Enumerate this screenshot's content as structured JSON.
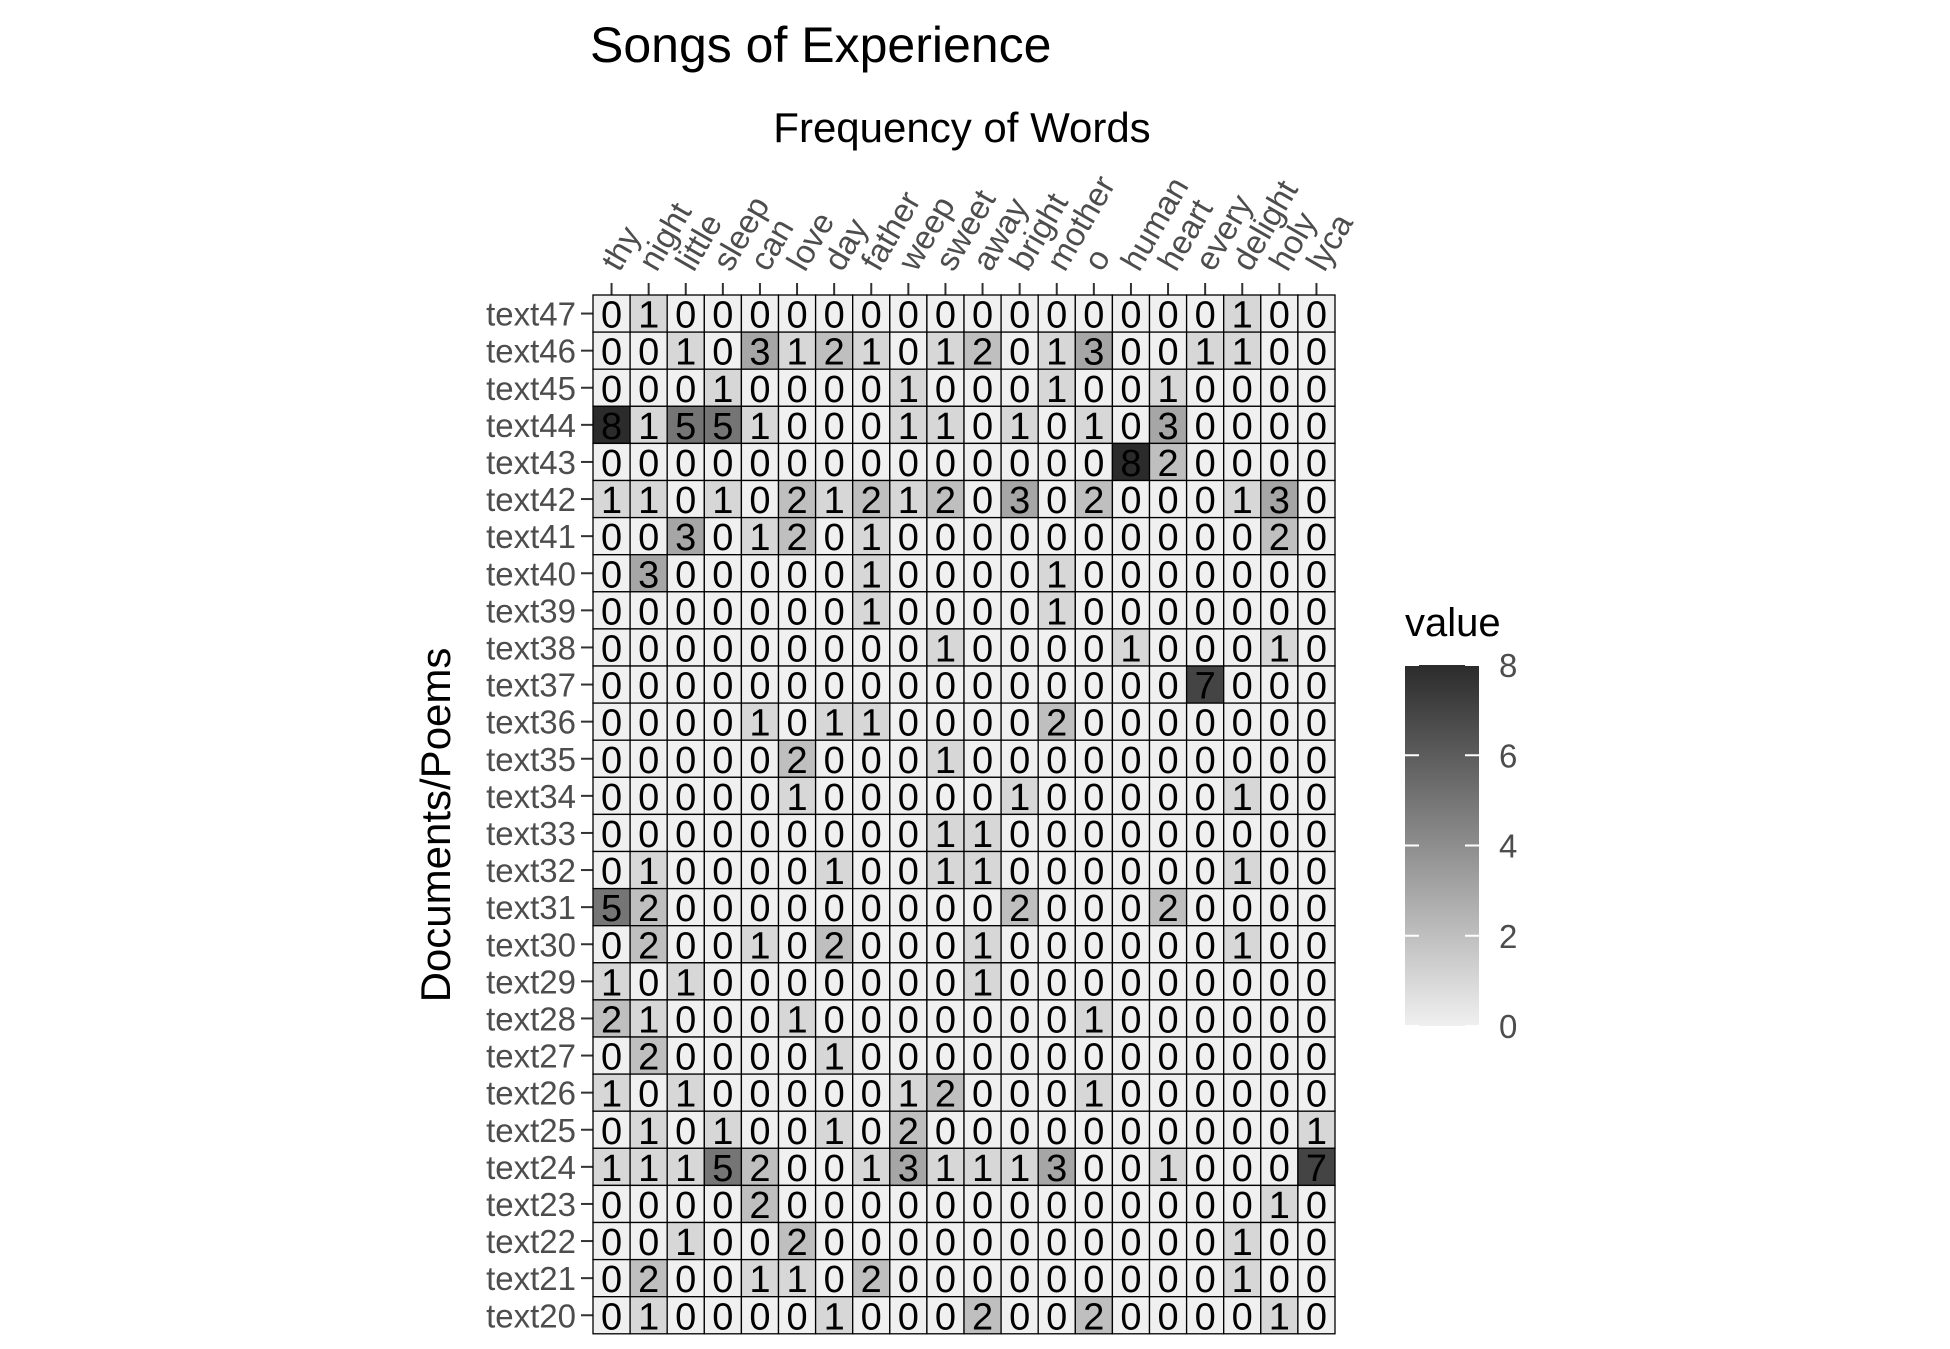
{
  "chart_data": {
    "type": "heatmap",
    "title": "Songs of Experience",
    "subtitle": "Frequency of Words",
    "xlabel": "",
    "ylabel": "Documents/Poems",
    "x_axis_position": "top",
    "x_categories": [
      "thy",
      "night",
      "little",
      "sleep",
      "can",
      "love",
      "day",
      "father",
      "weep",
      "sweet",
      "away",
      "bright",
      "mother",
      "o",
      "human",
      "heart",
      "every",
      "delight",
      "holy",
      "lyca"
    ],
    "y_categories": [
      "text47",
      "text46",
      "text45",
      "text44",
      "text43",
      "text42",
      "text41",
      "text40",
      "text39",
      "text38",
      "text37",
      "text36",
      "text35",
      "text34",
      "text33",
      "text32",
      "text31",
      "text30",
      "text29",
      "text28",
      "text27",
      "text26",
      "text25",
      "text24",
      "text23",
      "text22",
      "text21",
      "text20"
    ],
    "values": [
      [
        0,
        1,
        0,
        0,
        0,
        0,
        0,
        0,
        0,
        0,
        0,
        0,
        0,
        0,
        0,
        0,
        0,
        1,
        0,
        0
      ],
      [
        0,
        0,
        1,
        0,
        3,
        1,
        2,
        1,
        0,
        1,
        2,
        0,
        1,
        3,
        0,
        0,
        1,
        1,
        0,
        0
      ],
      [
        0,
        0,
        0,
        1,
        0,
        0,
        0,
        0,
        1,
        0,
        0,
        0,
        1,
        0,
        0,
        1,
        0,
        0,
        0,
        0
      ],
      [
        8,
        1,
        5,
        5,
        1,
        0,
        0,
        0,
        1,
        1,
        0,
        1,
        0,
        1,
        0,
        3,
        0,
        0,
        0,
        0
      ],
      [
        0,
        0,
        0,
        0,
        0,
        0,
        0,
        0,
        0,
        0,
        0,
        0,
        0,
        0,
        8,
        2,
        0,
        0,
        0,
        0
      ],
      [
        1,
        1,
        0,
        1,
        0,
        2,
        1,
        2,
        1,
        2,
        0,
        3,
        0,
        2,
        0,
        0,
        0,
        1,
        3,
        0
      ],
      [
        0,
        0,
        3,
        0,
        1,
        2,
        0,
        1,
        0,
        0,
        0,
        0,
        0,
        0,
        0,
        0,
        0,
        0,
        2,
        0
      ],
      [
        0,
        3,
        0,
        0,
        0,
        0,
        0,
        1,
        0,
        0,
        0,
        0,
        1,
        0,
        0,
        0,
        0,
        0,
        0,
        0
      ],
      [
        0,
        0,
        0,
        0,
        0,
        0,
        0,
        1,
        0,
        0,
        0,
        0,
        1,
        0,
        0,
        0,
        0,
        0,
        0,
        0
      ],
      [
        0,
        0,
        0,
        0,
        0,
        0,
        0,
        0,
        0,
        1,
        0,
        0,
        0,
        0,
        1,
        0,
        0,
        0,
        1,
        0
      ],
      [
        0,
        0,
        0,
        0,
        0,
        0,
        0,
        0,
        0,
        0,
        0,
        0,
        0,
        0,
        0,
        0,
        7,
        0,
        0,
        0
      ],
      [
        0,
        0,
        0,
        0,
        1,
        0,
        1,
        1,
        0,
        0,
        0,
        0,
        2,
        0,
        0,
        0,
        0,
        0,
        0,
        0
      ],
      [
        0,
        0,
        0,
        0,
        0,
        2,
        0,
        0,
        0,
        1,
        0,
        0,
        0,
        0,
        0,
        0,
        0,
        0,
        0,
        0
      ],
      [
        0,
        0,
        0,
        0,
        0,
        1,
        0,
        0,
        0,
        0,
        0,
        1,
        0,
        0,
        0,
        0,
        0,
        1,
        0,
        0
      ],
      [
        0,
        0,
        0,
        0,
        0,
        0,
        0,
        0,
        0,
        1,
        1,
        0,
        0,
        0,
        0,
        0,
        0,
        0,
        0,
        0
      ],
      [
        0,
        1,
        0,
        0,
        0,
        0,
        1,
        0,
        0,
        1,
        1,
        0,
        0,
        0,
        0,
        0,
        0,
        1,
        0,
        0
      ],
      [
        5,
        2,
        0,
        0,
        0,
        0,
        0,
        0,
        0,
        0,
        0,
        2,
        0,
        0,
        0,
        2,
        0,
        0,
        0,
        0
      ],
      [
        0,
        2,
        0,
        0,
        1,
        0,
        2,
        0,
        0,
        0,
        1,
        0,
        0,
        0,
        0,
        0,
        0,
        1,
        0,
        0
      ],
      [
        1,
        0,
        1,
        0,
        0,
        0,
        0,
        0,
        0,
        0,
        1,
        0,
        0,
        0,
        0,
        0,
        0,
        0,
        0,
        0
      ],
      [
        2,
        1,
        0,
        0,
        0,
        1,
        0,
        0,
        0,
        0,
        0,
        0,
        0,
        1,
        0,
        0,
        0,
        0,
        0,
        0
      ],
      [
        0,
        2,
        0,
        0,
        0,
        0,
        1,
        0,
        0,
        0,
        0,
        0,
        0,
        0,
        0,
        0,
        0,
        0,
        0,
        0
      ],
      [
        1,
        0,
        1,
        0,
        0,
        0,
        0,
        0,
        1,
        2,
        0,
        0,
        0,
        1,
        0,
        0,
        0,
        0,
        0,
        0
      ],
      [
        0,
        1,
        0,
        1,
        0,
        0,
        1,
        0,
        2,
        0,
        0,
        0,
        0,
        0,
        0,
        0,
        0,
        0,
        0,
        1
      ],
      [
        1,
        1,
        1,
        5,
        2,
        0,
        0,
        1,
        3,
        1,
        1,
        1,
        3,
        0,
        0,
        1,
        0,
        0,
        0,
        7
      ],
      [
        0,
        0,
        0,
        0,
        2,
        0,
        0,
        0,
        0,
        0,
        0,
        0,
        0,
        0,
        0,
        0,
        0,
        0,
        1,
        0
      ],
      [
        0,
        0,
        1,
        0,
        0,
        2,
        0,
        0,
        0,
        0,
        0,
        0,
        0,
        0,
        0,
        0,
        0,
        1,
        0,
        0
      ],
      [
        0,
        2,
        0,
        0,
        1,
        1,
        0,
        2,
        0,
        0,
        0,
        0,
        0,
        0,
        0,
        0,
        0,
        1,
        0,
        0
      ],
      [
        0,
        1,
        0,
        0,
        0,
        0,
        1,
        0,
        0,
        0,
        2,
        0,
        0,
        2,
        0,
        0,
        0,
        0,
        1,
        0
      ]
    ],
    "legend": {
      "title": "value",
      "position": "right",
      "breaks": [
        0,
        2,
        4,
        6,
        8
      ],
      "range": [
        0,
        8
      ],
      "low_color": "#f0f0f0",
      "high_color": "#2b2b2b"
    },
    "grid": false
  }
}
